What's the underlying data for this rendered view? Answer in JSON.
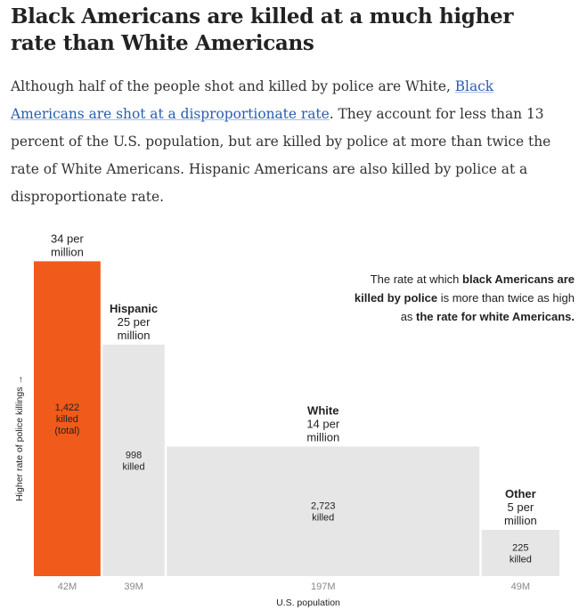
{
  "headline": "Black Americans are killed at a much higher rate than White Americans",
  "dek": {
    "part1": "Although half of the people shot and killed by police are White, ",
    "link": "Black Americans are shot at a disproportionate rate",
    "part2": ". They account for less than 13 percent of the U.S. population, but are killed by police at more than twice the rate of White Americans. Hispanic Americans are also killed by police at a disproportionate rate."
  },
  "colors": {
    "highlight": "#f05a1a",
    "other": "#e6e6e6",
    "axis_text": "#888888"
  },
  "chart_data": {
    "type": "bar",
    "variant": "variable-width (population width, rate height)",
    "xlabel": "U.S. population",
    "ylabel": "Higher rate of police killings →",
    "rate_unit": "per million",
    "series": [
      {
        "name": "",
        "group": "Black",
        "rate": 34,
        "population": "42M",
        "population_m": 42,
        "killed": "1,422",
        "killed_note": "(total)",
        "rate_label": [
          "34 per",
          "million"
        ],
        "highlight": true
      },
      {
        "name": "Hispanic",
        "group": "Hispanic",
        "rate": 25,
        "population": "39M",
        "population_m": 39,
        "killed": "998",
        "killed_note": "",
        "rate_label": [
          "25 per",
          "million"
        ],
        "highlight": false
      },
      {
        "name": "White",
        "group": "White",
        "rate": 14,
        "population": "197M",
        "population_m": 197,
        "killed": "2,723",
        "killed_note": "",
        "rate_label": [
          "14 per",
          "million"
        ],
        "highlight": false
      },
      {
        "name": "Other",
        "group": "Other",
        "rate": 5,
        "population": "49M",
        "population_m": 49,
        "killed": "225",
        "killed_note": "",
        "rate_label": [
          "5 per",
          "million"
        ],
        "highlight": false
      }
    ],
    "killed_word": "killed",
    "annotation": [
      [
        {
          "text": "The rate at which ",
          "bold": false
        },
        {
          "text": "black Americans are",
          "bold": true
        }
      ],
      [
        {
          "text": "killed by police",
          "bold": true
        },
        {
          "text": " is more than twice as high",
          "bold": false
        }
      ],
      [
        {
          "text": "as ",
          "bold": false
        },
        {
          "text": "the rate for white Americans.",
          "bold": true
        }
      ]
    ]
  }
}
